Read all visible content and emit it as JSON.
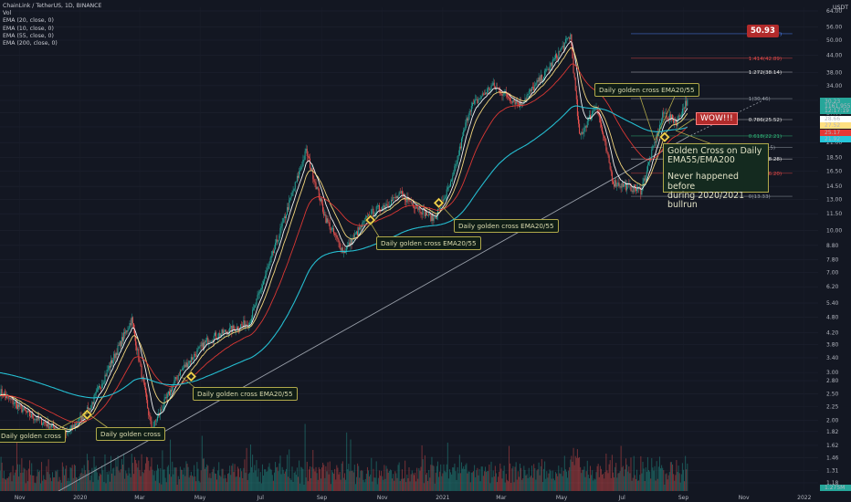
{
  "header": {
    "title": "ChainLink / TetherUS, 1D, BINANCE",
    "vol": "Vol",
    "indicators": [
      "EMA (20, close, 0)",
      "EMA (10, close, 0)",
      "EMA (55, close, 0)",
      "EMA (200, close, 0)"
    ],
    "currency": "USDT"
  },
  "annotations": {
    "gc_2019": "Daily golden cross",
    "gc_2020_jan": "Daily golden cross",
    "gc_2020_apr": "Daily golden cross EMA20/55",
    "gc_2020_oct": "Daily golden cross EMA20/55",
    "gc_2020_dec": "Daily golden cross EMA20/55",
    "gc_2021_aug": "Daily golden cross EMA20/55",
    "big_line1": "Golden Cross on Daily",
    "big_line2": "EMA55/EMA200",
    "big_line3": "Never happened before",
    "big_line4": "during 2020/2021 bullrun",
    "wow": "WOW!!!",
    "target_price": "50.93"
  },
  "fib_labels": {
    "f1618": "1.618(52.77)",
    "f1414": "1.414(42.89)",
    "f1272": "1.272(38.14)",
    "f1": "1(30.46)",
    "f786": "0.786(25.52)",
    "f618": "0.618(22.21)",
    "f5": "0.5(20.15)",
    "f382": "0.382(18.28)",
    "f236": "0.236(16.20)",
    "f0": "0(13.33)"
  },
  "price_tags": {
    "last": "30.23",
    "countdown": "12:17:19",
    "vol": "1161.955",
    "ema10": "28.66",
    "ema20": "27.52",
    "ema55": "25.17",
    "ema200": "21.92",
    "vol_badge": "1.275M"
  },
  "chart_data": {
    "type": "candlestick",
    "symbol": "LINKUSDT",
    "scale": "log",
    "ylim": [
      1.1,
      66
    ],
    "y_ticks": [
      "64.00",
      "56.00",
      "50.00",
      "44.00",
      "38.00",
      "34.00",
      "30.00",
      "27.00",
      "24.00",
      "21.00",
      "18.50",
      "16.50",
      "14.50",
      "13.00",
      "11.50",
      "10.00",
      "8.80",
      "7.80",
      "7.00",
      "6.20",
      "5.40",
      "4.80",
      "4.20",
      "3.80",
      "3.40",
      "3.00",
      "2.80",
      "2.50",
      "2.25",
      "2.00",
      "1.82",
      "1.62",
      "1.46",
      "1.31",
      "1.18"
    ],
    "x_ticks": [
      "Nov",
      "2020",
      "Mar",
      "May",
      "Jul",
      "Sep",
      "Nov",
      "2021",
      "Mar",
      "May",
      "Jul",
      "Sep",
      "Nov",
      "2022"
    ],
    "price_keypoints": [
      [
        "2019-10-12",
        2.55
      ],
      [
        "2019-11-10",
        2.1
      ],
      [
        "2019-12-18",
        1.78
      ],
      [
        "2020-01-10",
        2.2
      ],
      [
        "2020-02-22",
        4.7
      ],
      [
        "2020-03-13",
        1.85
      ],
      [
        "2020-04-10",
        3.0
      ],
      [
        "2020-05-10",
        4.0
      ],
      [
        "2020-06-20",
        4.6
      ],
      [
        "2020-07-15",
        8.5
      ],
      [
        "2020-08-16",
        19.5
      ],
      [
        "2020-09-05",
        11.0
      ],
      [
        "2020-09-23",
        8.3
      ],
      [
        "2020-10-20",
        11.5
      ],
      [
        "2020-11-20",
        13.5
      ],
      [
        "2020-12-23",
        11.0
      ],
      [
        "2021-01-10",
        15.0
      ],
      [
        "2021-01-28",
        28.0
      ],
      [
        "2021-02-20",
        34.0
      ],
      [
        "2021-03-20",
        29.0
      ],
      [
        "2021-04-15",
        38.0
      ],
      [
        "2021-05-10",
        52.0
      ],
      [
        "2021-05-19",
        22.0
      ],
      [
        "2021-06-05",
        29.0
      ],
      [
        "2021-06-22",
        15.0
      ],
      [
        "2021-07-20",
        14.0
      ],
      [
        "2021-08-12",
        27.0
      ],
      [
        "2021-08-25",
        25.0
      ],
      [
        "2021-09-05",
        30.23
      ]
    ],
    "series": [
      {
        "name": "EMA (10, close, 0)",
        "color": "#ffffff"
      },
      {
        "name": "EMA (20, close, 0)",
        "color": "#ffe082"
      },
      {
        "name": "EMA (55, close, 0)",
        "color": "#e53935"
      },
      {
        "name": "EMA (200, close, 0)",
        "color": "#26c6da"
      }
    ],
    "fib_levels": [
      {
        "ratio": 1.618,
        "price": 52.77,
        "color": "#4f86ff"
      },
      {
        "ratio": 1.414,
        "price": 42.89,
        "color": "#e04848"
      },
      {
        "ratio": 1.272,
        "price": 38.14,
        "color": "#e0e0e0"
      },
      {
        "ratio": 1,
        "price": 30.46,
        "color": "#9aa0aa"
      },
      {
        "ratio": 0.786,
        "price": 25.52,
        "color": "#e0e0e0"
      },
      {
        "ratio": 0.618,
        "price": 22.21,
        "color": "#30b87a"
      },
      {
        "ratio": 0.5,
        "price": 20.15,
        "color": "#9aa0aa"
      },
      {
        "ratio": 0.382,
        "price": 18.28,
        "color": "#e0e0e0"
      },
      {
        "ratio": 0.236,
        "price": 16.2,
        "color": "#e04848"
      },
      {
        "ratio": 0,
        "price": 13.33,
        "color": "#9aa0aa"
      }
    ],
    "trendline": {
      "from": [
        "2019-11-20",
        1.0
      ],
      "to": [
        "2021-09-05",
        22.0
      ],
      "extend_to": [
        "2021-11-20",
        30.0
      ]
    },
    "golden_cross_markers": [
      {
        "date": "2020-01-08",
        "price": 2.1
      },
      {
        "date": "2020-04-22",
        "price": 2.9
      },
      {
        "date": "2020-10-20",
        "price": 10.9
      },
      {
        "date": "2020-12-28",
        "price": 12.6
      },
      {
        "date": "2021-08-13",
        "price": 22.0
      }
    ],
    "colors": {
      "up": "#26a69a",
      "down": "#ef5350",
      "background": "#131722"
    }
  }
}
